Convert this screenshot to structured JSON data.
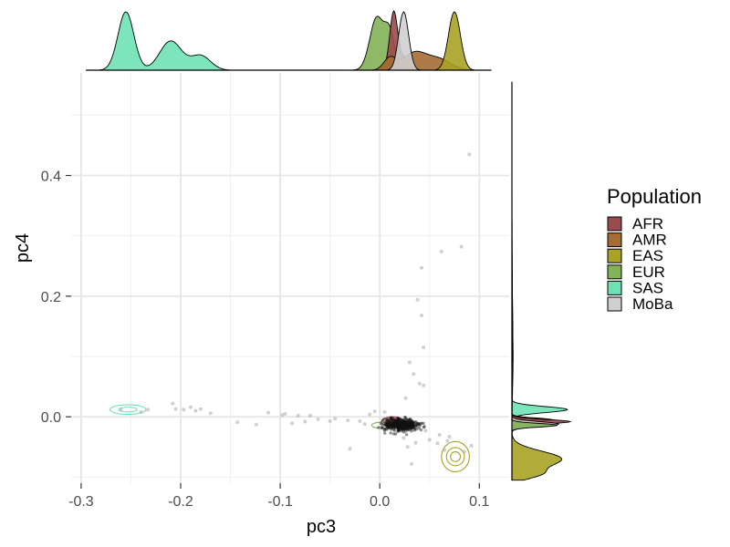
{
  "chart_data": {
    "type": "scatter",
    "title": "",
    "xlabel": "pc3",
    "ylabel": "pc4",
    "xlim": [
      -0.31,
      0.13
    ],
    "ylim": [
      -0.11,
      0.57
    ],
    "x_ticks": [
      -0.3,
      -0.2,
      -0.1,
      0.0,
      0.1
    ],
    "x_tick_labels": [
      "-0.3",
      "-0.2",
      "-0.1",
      "0.0",
      "0.1"
    ],
    "y_ticks": [
      0.0,
      0.2,
      0.4
    ],
    "y_tick_labels": [
      "0.0",
      "0.2",
      "0.4"
    ],
    "grid": true,
    "legend_position": "right",
    "legend": {
      "title": "Population",
      "entries": [
        {
          "label": "AFR",
          "color": "#9b4a4f"
        },
        {
          "label": "AMR",
          "color": "#a56d34"
        },
        {
          "label": "EAS",
          "color": "#a9a223"
        },
        {
          "label": "EUR",
          "color": "#82b356"
        },
        {
          "label": "SAS",
          "color": "#6ee2b5"
        },
        {
          "label": "MoBa",
          "color": "#cfcfcf"
        }
      ]
    },
    "outlier_points": [
      [
        -0.26,
        0.012
      ],
      [
        -0.24,
        0.008
      ],
      [
        -0.233,
        0.012
      ],
      [
        -0.208,
        0.022
      ],
      [
        -0.205,
        0.013
      ],
      [
        -0.197,
        0.012
      ],
      [
        -0.19,
        0.016
      ],
      [
        -0.185,
        0.01
      ],
      [
        -0.18,
        0.013
      ],
      [
        -0.17,
        0.006
      ],
      [
        -0.143,
        -0.009
      ],
      [
        -0.124,
        -0.013
      ],
      [
        -0.112,
        0.007
      ],
      [
        -0.098,
        0.003
      ],
      [
        -0.095,
        0.005
      ],
      [
        -0.088,
        -0.011
      ],
      [
        -0.082,
        0.002
      ],
      [
        -0.075,
        -0.008
      ],
      [
        -0.07,
        0.002
      ],
      [
        -0.062,
        -0.004
      ],
      [
        -0.05,
        -0.007
      ],
      [
        -0.045,
        -0.003
      ],
      [
        -0.032,
        -0.006
      ],
      [
        -0.03,
        -0.053
      ],
      [
        -0.02,
        -0.007
      ],
      [
        -0.015,
        -0.012
      ],
      [
        -0.01,
        0.004
      ],
      [
        -0.005,
        0.009
      ],
      [
        0.001,
        -0.018
      ],
      [
        0.005,
        0.008
      ],
      [
        0.024,
        -0.035
      ],
      [
        0.026,
        0.031
      ],
      [
        0.028,
        -0.05
      ],
      [
        0.03,
        0.09
      ],
      [
        0.032,
        -0.078
      ],
      [
        0.034,
        0.071
      ],
      [
        0.036,
        -0.043
      ],
      [
        0.038,
        0.194
      ],
      [
        0.04,
        0.055
      ],
      [
        0.042,
        0.168
      ],
      [
        0.042,
        0.247
      ],
      [
        0.044,
        0.115
      ],
      [
        0.044,
        0.052
      ],
      [
        0.046,
        -0.023
      ],
      [
        0.05,
        -0.038
      ],
      [
        0.058,
        -0.044
      ],
      [
        0.06,
        -0.03
      ],
      [
        0.062,
        0.274
      ],
      [
        0.065,
        -0.055
      ],
      [
        0.068,
        -0.04
      ],
      [
        0.07,
        -0.033
      ],
      [
        0.082,
        0.282
      ],
      [
        0.085,
        -0.058
      ],
      [
        0.09,
        0.435
      ],
      [
        0.092,
        -0.048
      ]
    ],
    "core_cluster": {
      "center": [
        0.021,
        -0.013
      ],
      "spread": [
        0.012,
        0.009
      ],
      "count": 420
    },
    "contours": [
      {
        "group": "SAS",
        "center": [
          -0.253,
          0.012
        ],
        "radii": [
          [
            0.018,
            0.008
          ],
          [
            0.009,
            0.004
          ]
        ]
      },
      {
        "group": "EAS",
        "center": [
          0.076,
          -0.066
        ],
        "radii": [
          [
            0.014,
            0.025
          ],
          [
            0.009,
            0.015
          ],
          [
            0.005,
            0.008
          ]
        ]
      },
      {
        "group": "AFR",
        "center": [
          0.013,
          -0.008
        ],
        "radii": [
          [
            0.011,
            0.008
          ],
          [
            0.007,
            0.005
          ]
        ]
      },
      {
        "group": "EUR",
        "center": [
          0.001,
          -0.014
        ],
        "radii": [
          [
            0.009,
            0.005
          ]
        ]
      },
      {
        "group": "MoBa",
        "center": [
          0.022,
          -0.012
        ],
        "radii": [
          [
            0.013,
            0.008
          ]
        ]
      }
    ],
    "marginal_x": [
      {
        "group": "SAS",
        "components": [
          [
            -0.255,
            0.008,
            1.0
          ],
          [
            -0.21,
            0.011,
            0.5
          ],
          [
            -0.18,
            0.01,
            0.25
          ]
        ]
      },
      {
        "group": "EUR",
        "components": [
          [
            -0.003,
            0.007,
            0.9
          ],
          [
            0.01,
            0.005,
            0.6
          ]
        ]
      },
      {
        "group": "AFR",
        "components": [
          [
            0.014,
            0.004,
            1.0
          ],
          [
            0.025,
            0.005,
            0.2
          ]
        ]
      },
      {
        "group": "AMR",
        "components": [
          [
            0.035,
            0.012,
            0.3
          ],
          [
            0.06,
            0.012,
            0.18
          ],
          [
            0.01,
            0.006,
            0.2
          ]
        ]
      },
      {
        "group": "MoBa",
        "components": [
          [
            0.024,
            0.005,
            1.0
          ]
        ]
      },
      {
        "group": "EAS",
        "components": [
          [
            0.075,
            0.006,
            1.0
          ]
        ]
      }
    ],
    "marginal_y": [
      {
        "group": "EAS",
        "components": [
          [
            -0.07,
            0.013,
            0.85
          ],
          [
            -0.095,
            0.008,
            0.4
          ]
        ]
      },
      {
        "group": "SAS",
        "components": [
          [
            0.012,
            0.005,
            0.95
          ]
        ]
      },
      {
        "group": "AMR",
        "components": [
          [
            -0.005,
            0.003,
            0.7
          ],
          [
            0.1,
            0.05,
            0.02
          ]
        ]
      },
      {
        "group": "AFR",
        "components": [
          [
            -0.008,
            0.0035,
            1.0
          ],
          [
            0.15,
            0.05,
            0.015
          ]
        ]
      },
      {
        "group": "MoBa",
        "components": [
          [
            -0.012,
            0.004,
            0.8
          ],
          [
            0.2,
            0.08,
            0.008
          ]
        ]
      },
      {
        "group": "EUR",
        "components": [
          [
            -0.014,
            0.003,
            0.78
          ]
        ]
      }
    ]
  }
}
